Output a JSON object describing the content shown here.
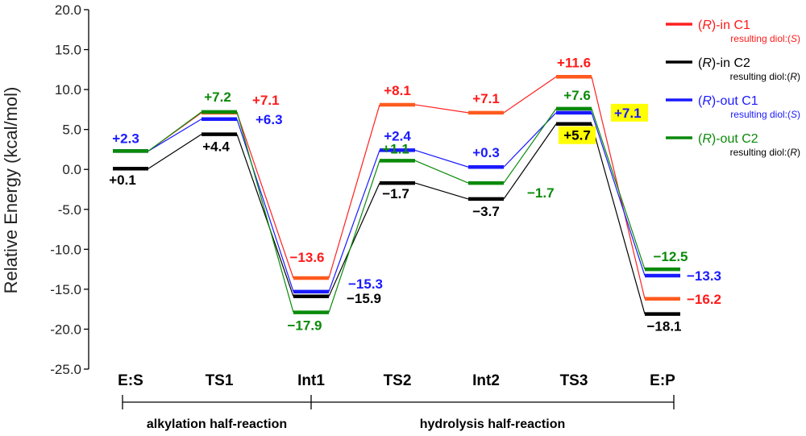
{
  "chart_data": {
    "type": "line",
    "ylabel": "Relative Energy (kcal/mol)",
    "ylim": [
      -25,
      20
    ],
    "yticks": [
      "20.0",
      "15.0",
      "10.0",
      "5.0",
      "0.0",
      "-5.0",
      "-10.0",
      "-15.0",
      "-20.0",
      "-25.0"
    ],
    "ytick_values": [
      20,
      15,
      10,
      5,
      0,
      -5,
      -10,
      -15,
      -20,
      -25
    ],
    "categories": [
      "E:S",
      "TS1",
      "Int1",
      "TS2",
      "Int2",
      "TS3",
      "E:P"
    ],
    "phases": [
      {
        "label": "alkylation half-reaction",
        "from": 0,
        "to": 2
      },
      {
        "label": "hydrolysis half-reaction",
        "from": 2,
        "to": 6
      }
    ],
    "grid": false,
    "legend_position": "top-right",
    "series": [
      {
        "name_prefix": "(",
        "name_italic": "R",
        "name_suffix": ")-in C1",
        "sub_prefix": "resulting diol:(",
        "sub_italic": "S",
        "sub_suffix": ")",
        "line_color": "#ff2020",
        "bar_color": "#ff5a1e",
        "label_color": "#ff1a1a",
        "sub_color": "#ff1a1a",
        "values": [
          null,
          7.1,
          -13.6,
          8.1,
          7.1,
          11.6,
          -16.2
        ],
        "labels": [
          "",
          "+7.1",
          "−13.6",
          "+8.1",
          "+7.1",
          "+11.6",
          "−16.2"
        ]
      },
      {
        "name_prefix": "(",
        "name_italic": "R",
        "name_suffix": ")-in C2",
        "sub_prefix": "resulting diol:(",
        "sub_italic": "R",
        "sub_suffix": ")",
        "line_color": "#000000",
        "bar_color": "#000000",
        "label_color": "#000000",
        "sub_color": "#000000",
        "values": [
          0.1,
          4.4,
          -15.9,
          -1.7,
          -3.7,
          5.7,
          -18.1
        ],
        "labels": [
          "+0.1",
          "+4.4",
          "−15.9",
          "−1.7",
          "−3.7",
          "+5.7",
          "−18.1"
        ]
      },
      {
        "name_prefix": "(",
        "name_italic": "R",
        "name_suffix": ")-out C1",
        "sub_prefix": "resulting diol:(",
        "sub_italic": "S",
        "sub_suffix": ")",
        "line_color": "#1a1aff",
        "bar_color": "#1a1aff",
        "label_color": "#1a1aff",
        "sub_color": "#1a1aff",
        "values": [
          2.3,
          6.3,
          -15.3,
          2.4,
          0.3,
          7.1,
          -13.3
        ],
        "labels": [
          "+2.3",
          "+6.3",
          "−15.3",
          "+2.4",
          "+0.3",
          "+7.1",
          "−13.3"
        ]
      },
      {
        "name_prefix": "(",
        "name_italic": "R",
        "name_suffix": ")-out C2",
        "sub_prefix": "resulting diol:(",
        "sub_italic": "R",
        "sub_suffix": ")",
        "line_color": "#0a8a0a",
        "bar_color": "#0a8a0a",
        "label_color": "#0a8a0a",
        "sub_color": "#000000",
        "values": [
          2.3,
          7.2,
          -17.9,
          1.1,
          -1.7,
          7.6,
          -12.5
        ],
        "labels": [
          "",
          "+7.2",
          "−17.9",
          "+1.1",
          "−1.7",
          "+7.6",
          "−12.5"
        ]
      }
    ],
    "highlight_color": "#ffff00"
  }
}
